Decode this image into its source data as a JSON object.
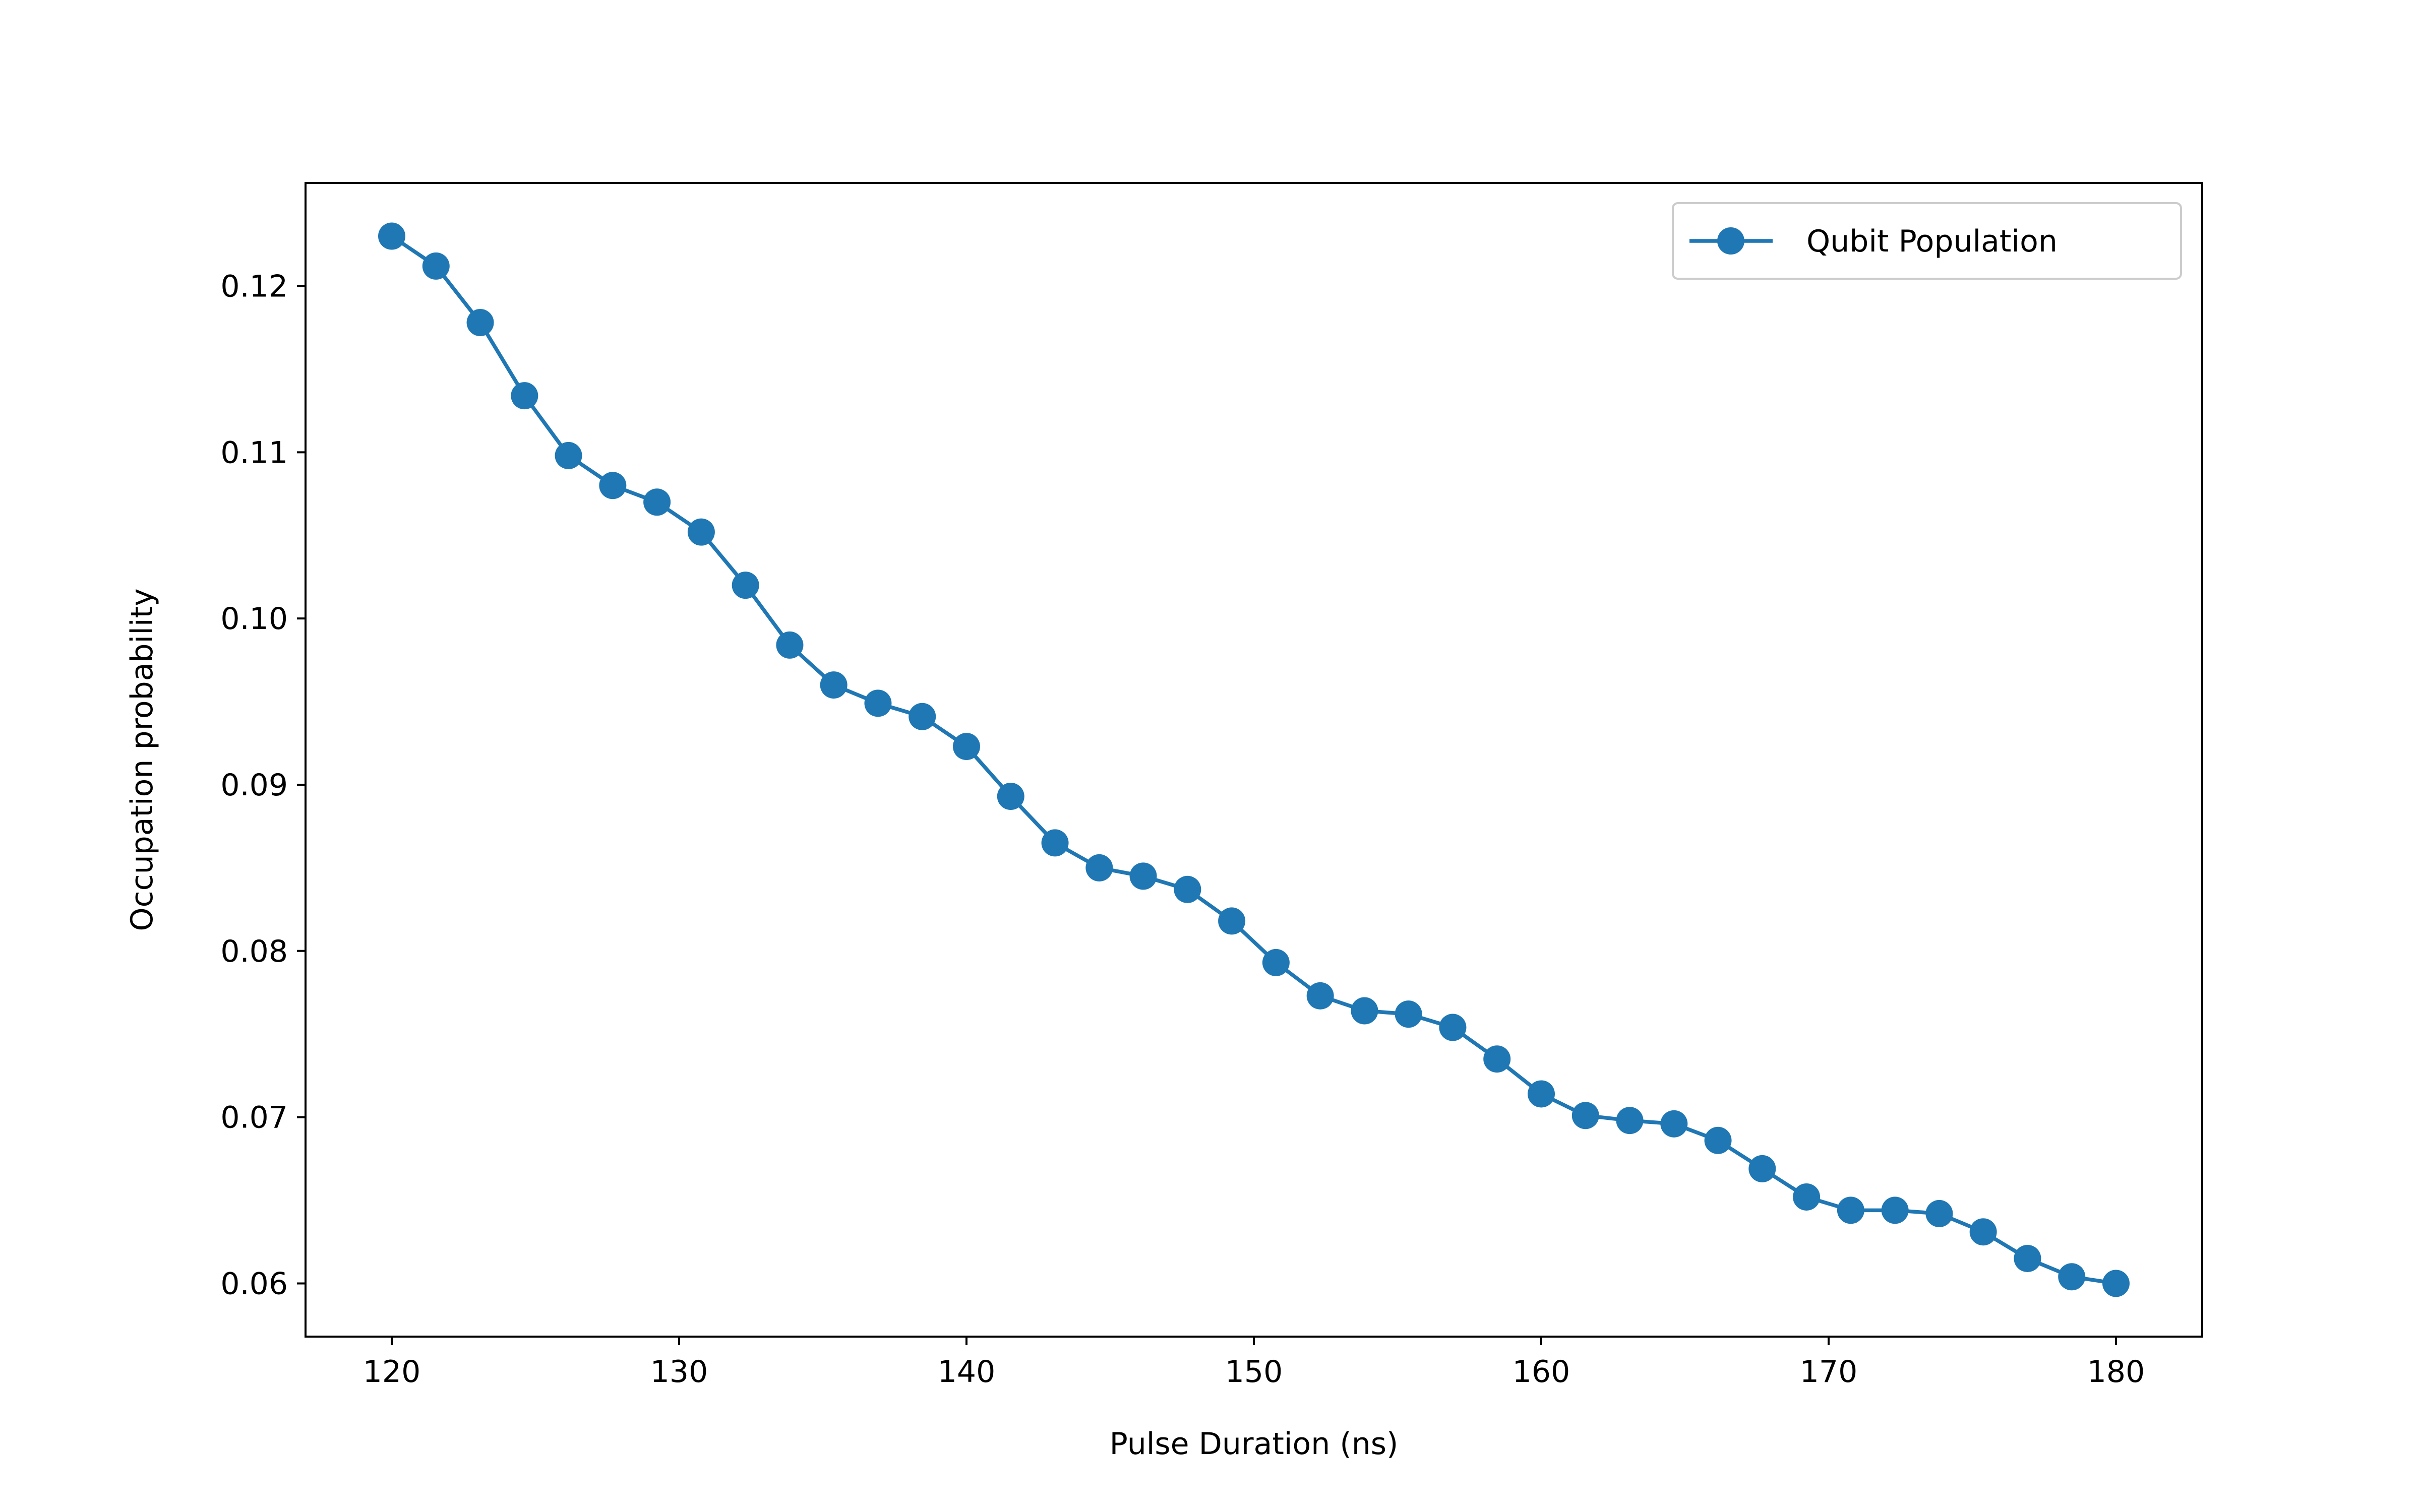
{
  "chart_data": {
    "type": "line",
    "title": "",
    "xlabel": "Pulse Duration (ns)",
    "ylabel": "Occupation probability",
    "xlim": [
      117,
      183
    ],
    "ylim": [
      0.0568,
      0.1262
    ],
    "xticks": [
      120,
      130,
      140,
      150,
      160,
      170,
      180
    ],
    "yticks": [
      0.06,
      0.07,
      0.08,
      0.09,
      0.1,
      0.11,
      0.12
    ],
    "xtick_labels": [
      "120",
      "130",
      "140",
      "150",
      "160",
      "170",
      "180"
    ],
    "ytick_labels": [
      "0.06",
      "0.07",
      "0.08",
      "0.09",
      "0.10",
      "0.11",
      "0.12"
    ],
    "grid": false,
    "legend_position": "top-right",
    "series": [
      {
        "name": "Qubit Population",
        "color": "#1f77b4",
        "marker": "circle",
        "x": [
          120.0,
          121.54,
          123.08,
          124.62,
          126.15,
          127.69,
          129.23,
          130.77,
          132.31,
          133.85,
          135.38,
          136.92,
          138.46,
          140.0,
          141.54,
          143.08,
          144.62,
          146.15,
          147.69,
          149.23,
          150.77,
          152.31,
          153.85,
          155.38,
          156.92,
          158.46,
          160.0,
          161.54,
          163.08,
          164.62,
          166.15,
          167.69,
          169.23,
          170.77,
          172.31,
          173.85,
          175.38,
          176.92,
          178.46,
          180.0
        ],
        "y": [
          0.123,
          0.1212,
          0.1178,
          0.1134,
          0.1098,
          0.108,
          0.107,
          0.1052,
          0.102,
          0.0984,
          0.096,
          0.0949,
          0.0941,
          0.0923,
          0.0893,
          0.0865,
          0.085,
          0.0845,
          0.0837,
          0.0818,
          0.0793,
          0.0773,
          0.0764,
          0.0762,
          0.0754,
          0.0735,
          0.0714,
          0.0701,
          0.0698,
          0.0696,
          0.0686,
          0.0669,
          0.0652,
          0.0644,
          0.0644,
          0.0642,
          0.0631,
          0.0615,
          0.0604,
          0.06
        ]
      }
    ]
  }
}
